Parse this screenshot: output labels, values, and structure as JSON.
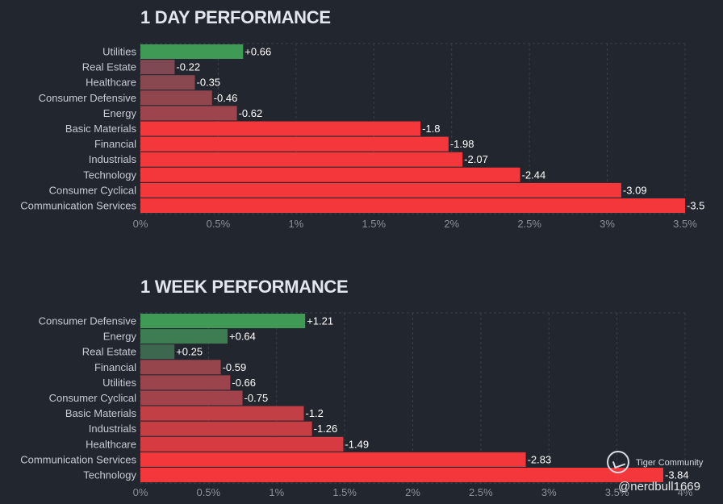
{
  "panels": [
    {
      "title": "1 DAY PERFORMANCE"
    },
    {
      "title": "1 WEEK PERFORMANCE"
    }
  ],
  "watermark": {
    "brand": "Tiger Community",
    "handle": "@nerdbull1669"
  },
  "colors": {
    "background": "#22262e",
    "positive": "#3e9a55",
    "negative_strong": "#f4373b",
    "negative_weak": "#6e4b55",
    "grid": "#3a3f4b"
  },
  "chart_data": [
    {
      "type": "bar",
      "orientation": "horizontal",
      "title": "1 DAY PERFORMANCE",
      "categories": [
        "Utilities",
        "Real Estate",
        "Healthcare",
        "Consumer Defensive",
        "Energy",
        "Basic Materials",
        "Financial",
        "Industrials",
        "Technology",
        "Consumer Cyclical",
        "Communication Services"
      ],
      "values": [
        0.66,
        -0.22,
        -0.35,
        -0.46,
        -0.62,
        -1.8,
        -1.98,
        -2.07,
        -2.44,
        -3.09,
        -3.5
      ],
      "value_labels": [
        "+0.66",
        "-0.22",
        "-0.35",
        "-0.46",
        "-0.62",
        "-1.8",
        "-1.98",
        "-2.07",
        "-2.44",
        "-3.09",
        "-3.5"
      ],
      "xlim": [
        0,
        3.5
      ],
      "xticks": [
        "0%",
        "0.5%",
        "1%",
        "1.5%",
        "2%",
        "2.5%",
        "3%",
        "3.5%"
      ],
      "grid": true,
      "legend": "none"
    },
    {
      "type": "bar",
      "orientation": "horizontal",
      "title": "1 WEEK PERFORMANCE",
      "categories": [
        "Consumer Defensive",
        "Energy",
        "Real Estate",
        "Financial",
        "Utilities",
        "Consumer Cyclical",
        "Basic Materials",
        "Industrials",
        "Healthcare",
        "Communication Services",
        "Technology"
      ],
      "values": [
        1.21,
        0.64,
        0.25,
        -0.59,
        -0.66,
        -0.75,
        -1.2,
        -1.26,
        -1.49,
        -2.83,
        -3.84
      ],
      "value_labels": [
        "+1.21",
        "+0.64",
        "+0.25",
        "-0.59",
        "-0.66",
        "-0.75",
        "-1.2",
        "-1.26",
        "-1.49",
        "-2.83",
        "-3.84"
      ],
      "xlim": [
        0,
        4
      ],
      "xticks": [
        "0%",
        "0.5%",
        "1%",
        "1.5%",
        "2%",
        "2.5%",
        "3%",
        "3.5%",
        "4%"
      ],
      "grid": true,
      "legend": "none"
    }
  ]
}
